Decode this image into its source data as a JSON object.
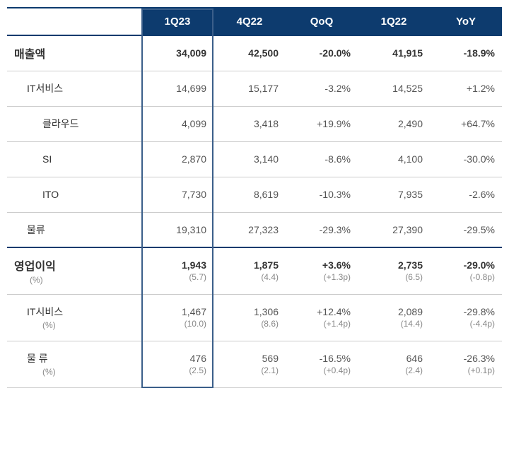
{
  "table": {
    "header_bg": "#0d3b6e",
    "header_fg": "#ffffff",
    "border_color": "#cccccc",
    "highlight_border": "#3b5f8a",
    "columns": [
      "1Q23",
      "4Q22",
      "QoQ",
      "1Q22",
      "YoY"
    ],
    "rows": [
      {
        "label": "매출액",
        "indent": 0,
        "bold": true,
        "section": true,
        "v": [
          "34,009",
          "42,500",
          "-20.0%",
          "41,915",
          "-18.9%"
        ]
      },
      {
        "label": "IT서비스",
        "indent": 1,
        "v": [
          "14,699",
          "15,177",
          "-3.2%",
          "14,525",
          "+1.2%"
        ]
      },
      {
        "label": "클라우드",
        "indent": 2,
        "v": [
          "4,099",
          "3,418",
          "+19.9%",
          "2,490",
          "+64.7%"
        ]
      },
      {
        "label": "SI",
        "indent": 2,
        "v": [
          "2,870",
          "3,140",
          "-8.6%",
          "4,100",
          "-30.0%"
        ]
      },
      {
        "label": "ITO",
        "indent": 2,
        "v": [
          "7,730",
          "8,619",
          "-10.3%",
          "7,935",
          "-2.6%"
        ]
      },
      {
        "label": "물류",
        "indent": 1,
        "v": [
          "19,310",
          "27,323",
          "-29.3%",
          "27,390",
          "-29.5%"
        ]
      },
      {
        "label": "영업이익",
        "indent": 0,
        "bold": true,
        "section": true,
        "double": true,
        "pct_label": "(%)",
        "v": [
          "1,943",
          "1,875",
          "+3.6%",
          "2,735",
          "-29.0%"
        ],
        "sub": [
          "(5.7)",
          "(4.4)",
          "(+1.3p)",
          "(6.5)",
          "(-0.8p)"
        ]
      },
      {
        "label": "IT시비스",
        "indent": 1,
        "double": true,
        "pct_label": "(%)",
        "v": [
          "1,467",
          "1,306",
          "+12.4%",
          "2,089",
          "-29.8%"
        ],
        "sub": [
          "(10.0)",
          "(8.6)",
          "(+1.4p)",
          "(14.4)",
          "(-4.4p)"
        ]
      },
      {
        "label": "물  류",
        "indent": 1,
        "double": true,
        "pct_label": "(%)",
        "v": [
          "476",
          "569",
          "-16.5%",
          "646",
          "-26.3%"
        ],
        "sub": [
          "(2.5)",
          "(2.1)",
          "(+0.4p)",
          "(2.4)",
          "(+0.1p)"
        ]
      }
    ]
  }
}
